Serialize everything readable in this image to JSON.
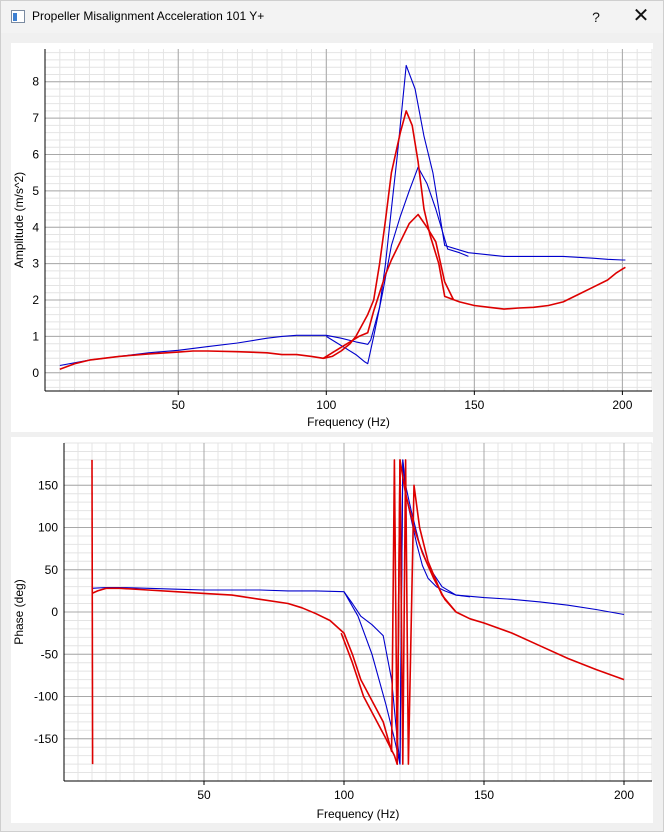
{
  "window": {
    "title": "Propeller Misalignment Acceleration 101 Y+",
    "help_label": "?",
    "close_label": "✕",
    "icon": "app-window-icon"
  },
  "chart_data": [
    {
      "type": "line",
      "title": "",
      "xlabel": "Frequency (Hz)",
      "ylabel": "Amplitude (m/s^2)",
      "xlim": [
        5,
        210
      ],
      "ylim": [
        -0.5,
        8.9
      ],
      "xticks": [
        50,
        100,
        150,
        200
      ],
      "yticks": [
        0,
        1,
        2,
        3,
        4,
        5,
        6,
        7,
        8
      ],
      "grid": true,
      "minor_grid": true,
      "series": [
        {
          "color": "#0000cc",
          "x": [
            10,
            20,
            30,
            40,
            50,
            60,
            70,
            80,
            85,
            90,
            100,
            105,
            110,
            113,
            114,
            115,
            118,
            120,
            122,
            124,
            127,
            130,
            133,
            136,
            140,
            148,
            160,
            170,
            180,
            190,
            195,
            200,
            201
          ],
          "y": [
            0.2,
            0.35,
            0.45,
            0.55,
            0.62,
            0.72,
            0.82,
            0.95,
            1.0,
            1.03,
            1.03,
            0.95,
            0.85,
            0.8,
            0.78,
            0.9,
            1.8,
            3.0,
            4.5,
            6.0,
            8.45,
            7.8,
            6.5,
            5.5,
            3.5,
            3.3,
            3.2,
            3.2,
            3.2,
            3.15,
            3.12,
            3.1,
            3.1
          ]
        },
        {
          "color": "#0000cc",
          "x": [
            100,
            103,
            106,
            110,
            113,
            114,
            116,
            119,
            122,
            125,
            128,
            131,
            134,
            137,
            141,
            145,
            148
          ],
          "y": [
            1.0,
            0.85,
            0.7,
            0.5,
            0.3,
            0.25,
            1.0,
            2.2,
            3.5,
            4.3,
            5.0,
            5.65,
            5.2,
            4.5,
            3.4,
            3.3,
            3.2
          ]
        },
        {
          "color": "#dd0000",
          "x": [
            10,
            15,
            20,
            30,
            40,
            50,
            55,
            60,
            70,
            80,
            85,
            90,
            95,
            99,
            102,
            105,
            108,
            110,
            112,
            114,
            116,
            118,
            120,
            122,
            125,
            127,
            129,
            131,
            133,
            135,
            138,
            140,
            145,
            150,
            155,
            160,
            165,
            170,
            175,
            180,
            185,
            190,
            195,
            198,
            200,
            201
          ],
          "y": [
            0.1,
            0.25,
            0.35,
            0.45,
            0.52,
            0.57,
            0.6,
            0.6,
            0.58,
            0.55,
            0.5,
            0.5,
            0.45,
            0.4,
            0.45,
            0.6,
            0.8,
            1.0,
            1.3,
            1.6,
            2.0,
            3.0,
            4.2,
            5.5,
            6.6,
            7.2,
            6.8,
            5.8,
            4.5,
            3.8,
            3.0,
            2.1,
            1.95,
            1.85,
            1.8,
            1.75,
            1.78,
            1.8,
            1.85,
            1.95,
            2.15,
            2.35,
            2.55,
            2.75,
            2.85,
            2.9
          ]
        },
        {
          "color": "#dd0000",
          "x": [
            99,
            102,
            105,
            108,
            111,
            114,
            116,
            118,
            120,
            122,
            125,
            128,
            131,
            134,
            137,
            140,
            143
          ],
          "y": [
            0.4,
            0.55,
            0.7,
            0.85,
            1.0,
            1.1,
            1.7,
            2.2,
            2.7,
            3.1,
            3.6,
            4.1,
            4.35,
            4.0,
            3.6,
            2.5,
            2.0
          ]
        }
      ]
    },
    {
      "type": "line",
      "title": "",
      "xlabel": "Frequency (Hz)",
      "ylabel": "Phase (deg)",
      "xlim": [
        0,
        210
      ],
      "ylim": [
        -200,
        200
      ],
      "xticks": [
        50,
        100,
        150,
        200
      ],
      "yticks": [
        -150,
        -100,
        -50,
        0,
        50,
        100,
        150
      ],
      "grid": true,
      "minor_grid": true,
      "series": [
        {
          "color": "#0000cc",
          "x": [
            10,
            15,
            20,
            30,
            40,
            50,
            60,
            70,
            80,
            90,
            100,
            103,
            106,
            110,
            114,
            117,
            119,
            120,
            121,
            122,
            124,
            127,
            130,
            135,
            140,
            150,
            160,
            170,
            180,
            190,
            200
          ],
          "y": [
            28,
            29,
            29,
            28,
            27,
            26,
            26,
            26,
            25,
            25,
            24,
            10,
            -5,
            -15,
            -28,
            -80,
            -150,
            -180,
            180,
            150,
            120,
            80,
            55,
            30,
            20,
            17,
            15,
            12,
            8,
            3,
            -3
          ]
        },
        {
          "color": "#0000cc",
          "x": [
            100,
            105,
            110,
            115,
            118,
            120,
            121,
            122,
            124,
            126,
            128,
            130,
            133,
            136,
            140,
            145
          ],
          "y": [
            24,
            -5,
            -50,
            -110,
            -150,
            -180,
            180,
            140,
            110,
            80,
            55,
            40,
            30,
            25,
            20,
            18
          ]
        },
        {
          "color": "#dd0000",
          "x": [
            10,
            12,
            15,
            20,
            30,
            40,
            50,
            60,
            70,
            80,
            85,
            90,
            95,
            100,
            103,
            106,
            110,
            114,
            117,
            118,
            119,
            120,
            121,
            122,
            123,
            125,
            127,
            130,
            135,
            140,
            145,
            150,
            160,
            170,
            180,
            190,
            200
          ],
          "y": [
            22,
            25,
            28,
            28,
            26,
            24,
            22,
            20,
            15,
            10,
            5,
            -2,
            -10,
            -25,
            -50,
            -80,
            -105,
            -130,
            -165,
            180,
            -180,
            180,
            -180,
            180,
            -180,
            150,
            100,
            60,
            20,
            0,
            -8,
            -13,
            -25,
            -40,
            -55,
            -68,
            -80
          ]
        },
        {
          "color": "#dd0000",
          "x": [
            10,
            10.2
          ],
          "y": [
            180,
            -180
          ]
        },
        {
          "color": "#dd0000",
          "x": [
            99,
            103,
            107,
            111,
            115,
            118,
            119,
            120,
            122,
            125,
            128,
            132,
            136,
            140
          ],
          "y": [
            -25,
            -60,
            -100,
            -125,
            -150,
            -170,
            -180,
            180,
            140,
            100,
            70,
            40,
            15,
            0
          ]
        }
      ]
    }
  ]
}
